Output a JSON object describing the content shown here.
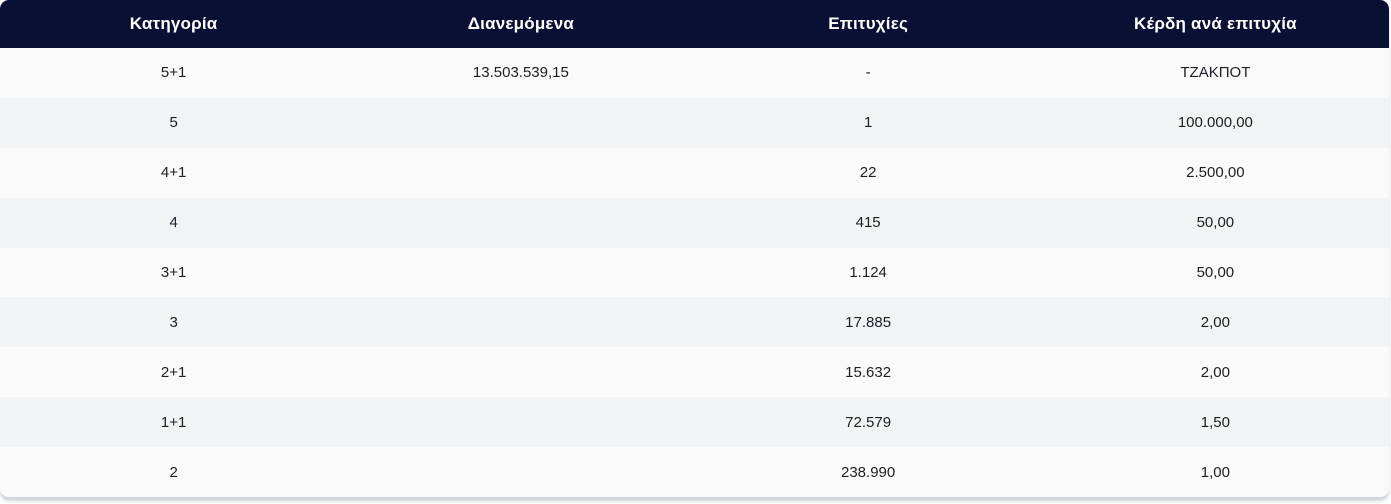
{
  "colors": {
    "header_background": "#0a1033",
    "header_text": "#ffffff",
    "row_light": "#fafafa",
    "row_alternate": "#f2f3f5",
    "body_text": "#1d1d27"
  },
  "table": {
    "columns": {
      "category": "Κατηγορία",
      "distributed": "Διανεμόμενα",
      "winners": "Επιτυχίες",
      "prize_per_winner": "Κέρδη ανά επιτυχία"
    },
    "rows": [
      {
        "category": "5+1",
        "distributed": "13.503.539,15",
        "winners": "-",
        "prize": "ΤΖΑΚΠΟΤ"
      },
      {
        "category": "5",
        "distributed": "",
        "winners": "1",
        "prize": "100.000,00"
      },
      {
        "category": "4+1",
        "distributed": "",
        "winners": "22",
        "prize": "2.500,00"
      },
      {
        "category": "4",
        "distributed": "",
        "winners": "415",
        "prize": "50,00"
      },
      {
        "category": "3+1",
        "distributed": "",
        "winners": "1.124",
        "prize": "50,00"
      },
      {
        "category": "3",
        "distributed": "",
        "winners": "17.885",
        "prize": "2,00"
      },
      {
        "category": "2+1",
        "distributed": "",
        "winners": "15.632",
        "prize": "2,00"
      },
      {
        "category": "1+1",
        "distributed": "",
        "winners": "72.579",
        "prize": "1,50"
      },
      {
        "category": "2",
        "distributed": "",
        "winners": "238.990",
        "prize": "1,00"
      }
    ]
  }
}
